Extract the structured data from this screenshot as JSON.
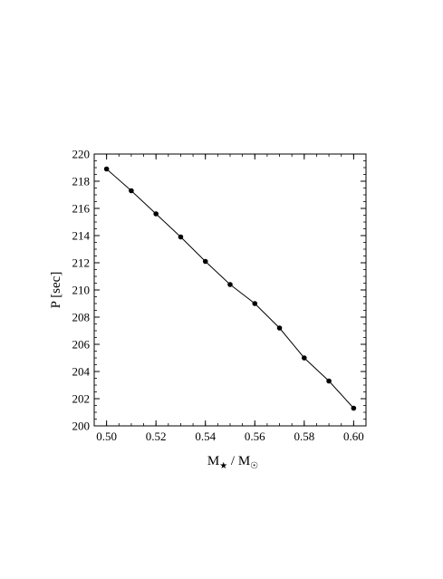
{
  "chart_data": {
    "type": "line",
    "title": "",
    "xlabel": "M★ / M☉",
    "xlabel_parts": {
      "prefix": "M",
      "sub1": "★",
      "middle": " / M",
      "sub2": "☉"
    },
    "ylabel": "P  [sec]",
    "xlim": [
      0.495,
      0.605
    ],
    "ylim": [
      200,
      220
    ],
    "xticks": [
      0.5,
      0.52,
      0.54,
      0.56,
      0.58,
      0.6
    ],
    "xtick_labels": [
      "0.50",
      "0.52",
      "0.54",
      "0.56",
      "0.58",
      "0.60"
    ],
    "yticks": [
      200,
      202,
      204,
      206,
      208,
      210,
      212,
      214,
      216,
      218,
      220
    ],
    "ytick_labels": [
      "200",
      "202",
      "204",
      "206",
      "208",
      "210",
      "212",
      "214",
      "216",
      "218",
      "220"
    ],
    "x_minor_step": 0.005,
    "y_minor_step": 0.5,
    "grid": false,
    "legend": "none",
    "series": [
      {
        "x": [
          0.5,
          0.51,
          0.52,
          0.53,
          0.54,
          0.55,
          0.56,
          0.57,
          0.58,
          0.59,
          0.6
        ],
        "y": [
          218.9,
          217.3,
          215.6,
          213.9,
          212.1,
          210.4,
          209.0,
          207.2,
          205.0,
          203.3,
          201.3
        ],
        "color": "#000000",
        "marker": "circle"
      }
    ]
  }
}
